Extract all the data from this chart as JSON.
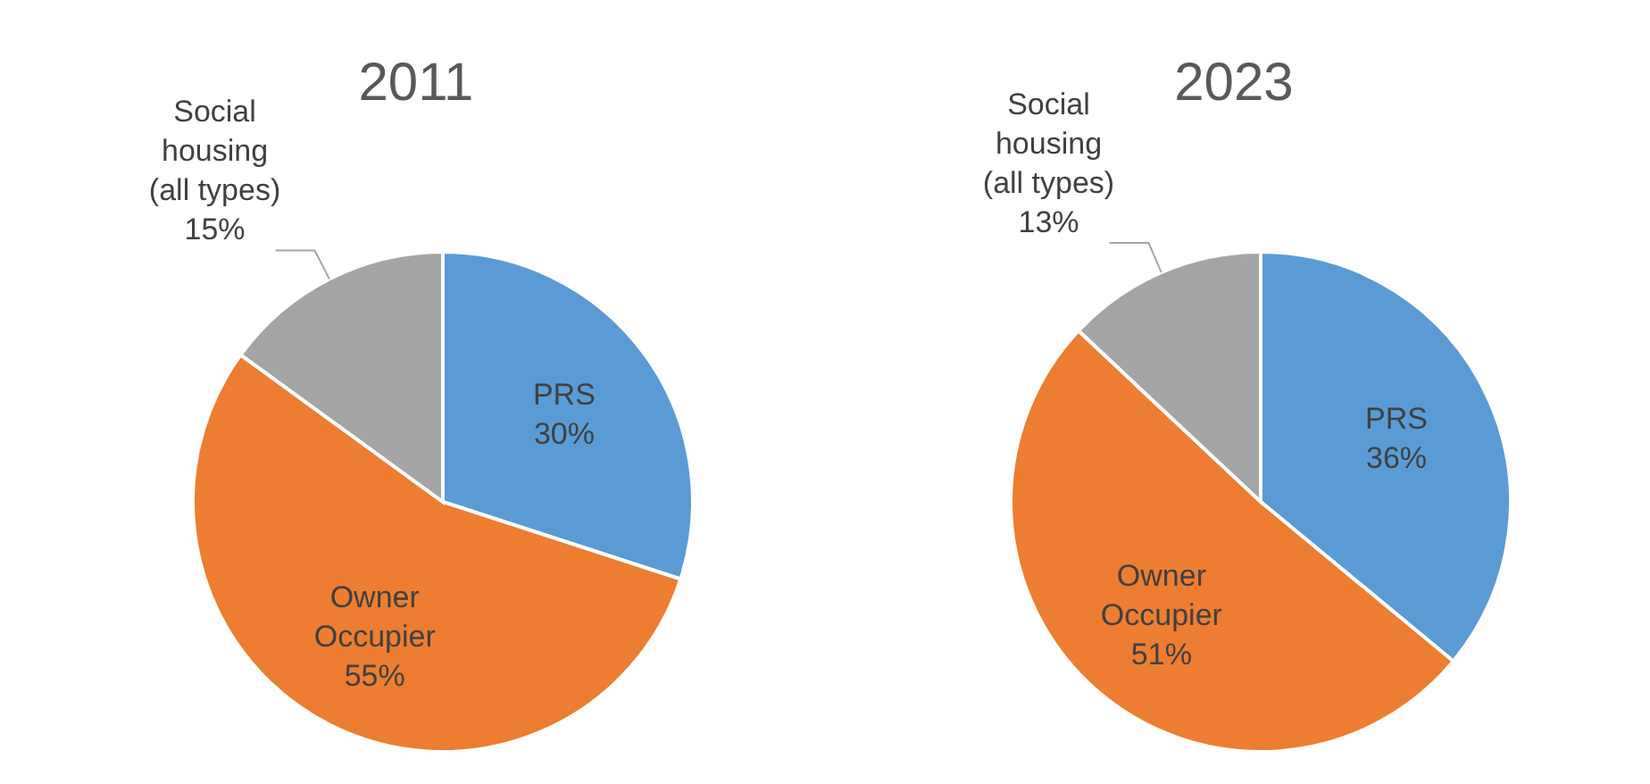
{
  "chart_data": [
    {
      "type": "pie",
      "title": "2011",
      "categories": [
        "PRS",
        "Owner Occupier",
        "Social housing (all types)"
      ],
      "values": [
        30,
        55,
        15
      ],
      "colors": [
        "#5b9bd5",
        "#ed7d31",
        "#a5a5a5"
      ],
      "value_labels": [
        "30%",
        "55%",
        "15%"
      ],
      "legend": false
    },
    {
      "type": "pie",
      "title": "2023",
      "categories": [
        "PRS",
        "Owner Occupier",
        "Social housing (all types)"
      ],
      "values": [
        36,
        51,
        13
      ],
      "colors": [
        "#5b9bd5",
        "#ed7d31",
        "#a5a5a5"
      ],
      "value_labels": [
        "36%",
        "51%",
        "13%"
      ],
      "legend": false
    }
  ]
}
